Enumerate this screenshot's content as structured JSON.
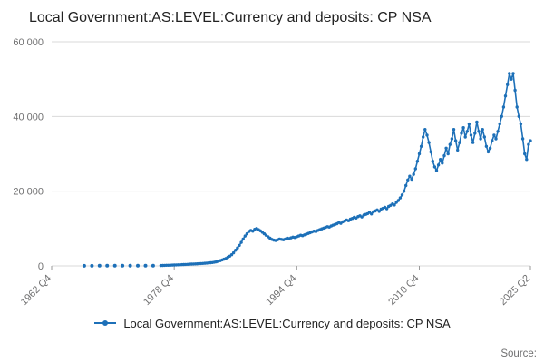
{
  "title": "Local Government:AS:LEVEL:Currency and deposits: CP NSA",
  "legend": {
    "label": "Local Government:AS:LEVEL:Currency and deposits: CP NSA"
  },
  "source_label": "Source:",
  "colors": {
    "accent": "#1d70b8",
    "grid": "#d9d9d9",
    "axis_text": "#707071",
    "title_text": "#222222"
  },
  "chart_data": {
    "type": "line",
    "title": "Local Government:AS:LEVEL:Currency and deposits: CP NSA",
    "xlabel": "",
    "ylabel": "",
    "color": "#1d70b8",
    "grid": "horizontal",
    "legend_position": "bottom",
    "x_range": [
      1962.75,
      2025.25
    ],
    "y_range": [
      0,
      60000
    ],
    "y_ticks": [
      {
        "value": 0,
        "label": "0"
      },
      {
        "value": 20000,
        "label": "20 000"
      },
      {
        "value": 40000,
        "label": "40 000"
      },
      {
        "value": 60000,
        "label": "60 000"
      }
    ],
    "x_ticks": [
      {
        "value": 1962.75,
        "label": "1962 Q4"
      },
      {
        "value": 1978.75,
        "label": "1978 Q4"
      },
      {
        "value": 1994.75,
        "label": "1994 Q4"
      },
      {
        "value": 2010.75,
        "label": "2010 Q4"
      },
      {
        "value": 2025.25,
        "label": "2025 Q2"
      }
    ],
    "series_name": "Local Government:AS:LEVEL:Currency and deposits: CP NSA",
    "annual_points": {
      "note": "sparse early annual observations, markers only",
      "x": [
        1967,
        1968,
        1969,
        1970,
        1971,
        1972,
        1973,
        1974,
        1975,
        1976
      ],
      "y": [
        30,
        35,
        40,
        45,
        50,
        55,
        60,
        65,
        70,
        80
      ]
    },
    "quarterly": {
      "x_start": 1977.0,
      "x_step": 0.25,
      "values": [
        100,
        120,
        140,
        160,
        180,
        200,
        220,
        240,
        260,
        280,
        300,
        330,
        360,
        390,
        420,
        450,
        480,
        510,
        540,
        570,
        600,
        630,
        660,
        700,
        750,
        800,
        850,
        900,
        1000,
        1100,
        1250,
        1400,
        1600,
        1800,
        2000,
        2300,
        2600,
        3000,
        3500,
        4200,
        4800,
        5500,
        6300,
        7200,
        8000,
        8600,
        9200,
        9500,
        9300,
        9800,
        10000,
        9700,
        9400,
        9000,
        8600,
        8200,
        7800,
        7400,
        7100,
        6900,
        6800,
        7000,
        7200,
        7100,
        7000,
        7200,
        7400,
        7300,
        7500,
        7700,
        7600,
        7800,
        8000,
        8200,
        8100,
        8300,
        8500,
        8700,
        8900,
        9100,
        9300,
        9200,
        9500,
        9700,
        9900,
        10100,
        10300,
        10500,
        10400,
        10700,
        10900,
        11100,
        11300,
        11600,
        11400,
        11800,
        12000,
        12300,
        12100,
        12500,
        12700,
        13000,
        12800,
        13200,
        13400,
        13100,
        13600,
        13800,
        14000,
        14300,
        13900,
        14500,
        14700,
        15000,
        14600,
        15200,
        15400,
        15700,
        15300,
        15900,
        16200,
        16600,
        16300,
        17000,
        17500,
        18200,
        19000,
        20000,
        21500,
        23000,
        24000,
        23200,
        24500,
        26000,
        28000,
        30000,
        32000,
        34500,
        36500,
        35000,
        33000,
        30500,
        28000,
        26500,
        25500,
        27000,
        28500,
        27500,
        29500,
        31500,
        30000,
        32500,
        34000,
        36500,
        33500,
        31000,
        33000,
        35500,
        37000,
        34500,
        36000,
        38000,
        35000,
        33000,
        35500,
        38500,
        36000,
        34000,
        36500,
        34500,
        32000,
        30500,
        31500,
        33500,
        35000,
        34000,
        36000,
        38000,
        40000,
        42500,
        45500,
        48500,
        51500,
        50000,
        51500,
        47000,
        42500,
        40000,
        38000,
        34000,
        30000,
        28500,
        32500,
        33500
      ]
    }
  }
}
